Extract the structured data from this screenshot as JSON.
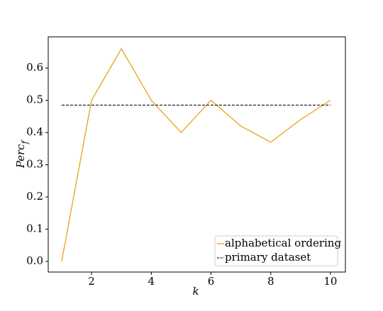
{
  "chart_data": {
    "type": "line",
    "xlabel": "k",
    "ylabel": "Perc",
    "ylabel_sub": "f",
    "series": [
      {
        "name": "alphabetical ordering",
        "color": "#e8a317",
        "dash": false,
        "x": [
          1,
          2,
          3,
          4,
          5,
          6,
          7,
          8,
          9,
          10
        ],
        "values": [
          0.0,
          0.5,
          0.66,
          0.5,
          0.4,
          0.5,
          0.42,
          0.37,
          0.44,
          0.5
        ]
      },
      {
        "name": "primary dataset",
        "color": "#333333",
        "dash": true,
        "x": [
          1,
          10
        ],
        "values": [
          0.485,
          0.485
        ]
      }
    ],
    "xlim": [
      0.55,
      10.5
    ],
    "xticks": [
      2,
      4,
      6,
      8,
      10
    ],
    "ylim": [
      -0.033,
      0.697
    ],
    "yticks": [
      {
        "value": 0,
        "label": "0.0"
      },
      0.1,
      0.2,
      0.3,
      0.4,
      0.5,
      0.6
    ],
    "legend": "lower right"
  }
}
